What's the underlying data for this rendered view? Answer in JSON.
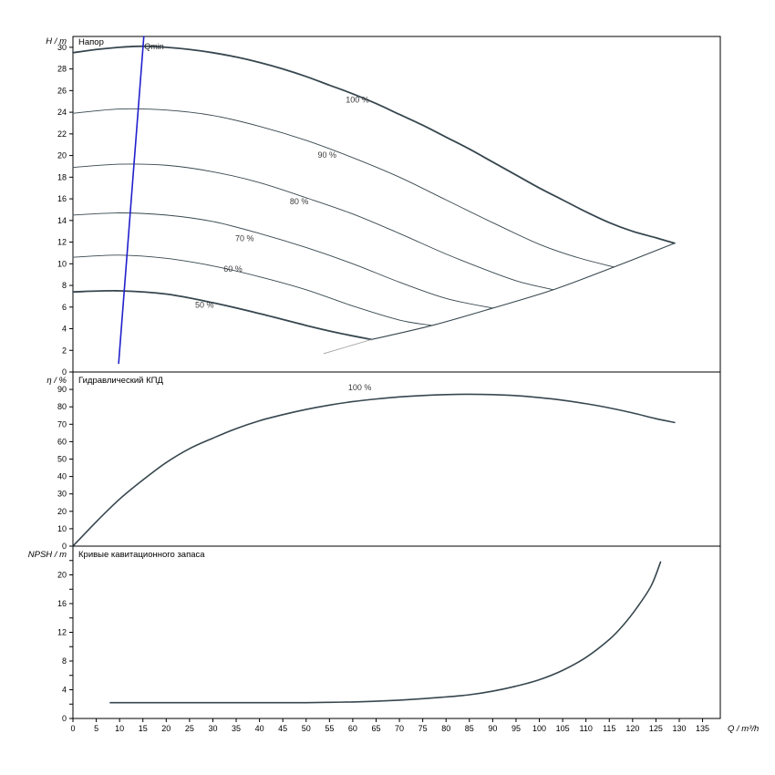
{
  "page": {
    "background": "#ffffff"
  },
  "style": {
    "curve_color": "#37474f",
    "qmin_color": "#2020cc",
    "limit_color": "#9e9e9e",
    "label_color": "#3a3a3a",
    "frame_color": "#000000"
  },
  "axis": {
    "x": {
      "label": "Q / m³/h",
      "min": 0,
      "scale_max": 138.8,
      "tick_step": 5,
      "tick_max": 135
    }
  },
  "chart_data": [
    {
      "type": "line",
      "title": "Напор",
      "ylabel": "H / m",
      "ylim": [
        0,
        31
      ],
      "yticks": {
        "step": 2,
        "max": 30,
        "label_every": 2
      },
      "series": [
        {
          "name": "curve-100pct",
          "width": 1.8,
          "x": [
            0,
            5,
            10,
            15,
            20,
            25,
            30,
            35,
            40,
            45,
            50,
            55,
            60,
            65,
            70,
            75,
            80,
            85,
            90,
            95,
            100,
            105,
            110,
            115,
            120,
            125,
            129
          ],
          "y": [
            29.5,
            29.8,
            30.0,
            30.1,
            30.0,
            29.8,
            29.5,
            29.1,
            28.6,
            28.0,
            27.3,
            26.5,
            25.7,
            24.8,
            23.8,
            22.8,
            21.7,
            20.6,
            19.4,
            18.2,
            17.0,
            15.9,
            14.8,
            13.8,
            13.0,
            12.4,
            11.9
          ]
        },
        {
          "name": "curve-90pct",
          "width": 0.9,
          "x": [
            0,
            10,
            20,
            30,
            40,
            50,
            60,
            70,
            80,
            90,
            100,
            108,
            116
          ],
          "y": [
            23.9,
            24.3,
            24.2,
            23.7,
            22.7,
            21.4,
            19.8,
            18.0,
            15.9,
            13.8,
            11.8,
            10.6,
            9.7
          ]
        },
        {
          "name": "curve-80pct",
          "width": 0.9,
          "x": [
            0,
            10,
            20,
            30,
            40,
            50,
            60,
            70,
            80,
            90,
            96,
            103
          ],
          "y": [
            18.9,
            19.2,
            19.1,
            18.5,
            17.5,
            16.1,
            14.6,
            12.8,
            10.9,
            9.2,
            8.3,
            7.6
          ]
        },
        {
          "name": "curve-70pct",
          "width": 0.9,
          "x": [
            0,
            10,
            20,
            30,
            40,
            50,
            60,
            70,
            80,
            90
          ],
          "y": [
            14.5,
            14.7,
            14.5,
            13.9,
            12.8,
            11.5,
            10.0,
            8.3,
            6.8,
            5.9
          ]
        },
        {
          "name": "curve-60pct",
          "width": 0.9,
          "x": [
            0,
            10,
            20,
            30,
            40,
            50,
            60,
            70,
            77
          ],
          "y": [
            10.6,
            10.8,
            10.5,
            9.8,
            8.8,
            7.6,
            6.1,
            4.8,
            4.3
          ]
        },
        {
          "name": "curve-50pct",
          "width": 1.8,
          "x": [
            0,
            10,
            20,
            30,
            40,
            50,
            57,
            64
          ],
          "y": [
            7.4,
            7.5,
            7.2,
            6.4,
            5.4,
            4.3,
            3.6,
            3.0
          ]
        },
        {
          "name": "max-flow-boundary",
          "width": 1.1,
          "x": [
            64,
            77,
            90,
            103,
            116,
            129
          ],
          "y": [
            3.0,
            4.3,
            5.9,
            7.6,
            9.7,
            11.9
          ]
        },
        {
          "name": "min-limit-gray-line",
          "width": 0.8,
          "color": "#9e9e9e",
          "x": [
            53.8,
            64
          ],
          "y": [
            1.7,
            3.0
          ]
        },
        {
          "name": "qmin-line",
          "width": 1.6,
          "color": "#2020cc",
          "x": [
            9.8,
            15.2
          ],
          "y": [
            0.8,
            31
          ]
        }
      ],
      "labels": [
        {
          "text": "100 %",
          "q": 61,
          "v": 24.9
        },
        {
          "text": "90 %",
          "q": 54.5,
          "v": 19.8
        },
        {
          "text": "80 %",
          "q": 48.5,
          "v": 15.5
        },
        {
          "text": "70 %",
          "q": 36.8,
          "v": 12.1
        },
        {
          "text": "60 %",
          "q": 34.3,
          "v": 9.25
        },
        {
          "text": "50 %",
          "q": 28.2,
          "v": 5.95
        },
        {
          "text": "Qmin",
          "q": 15.3,
          "v": 29.8,
          "anchor": "start",
          "color": "#222222"
        }
      ]
    },
    {
      "type": "line",
      "title": "Гидравлический КПД",
      "ylabel": "η / %",
      "ylim": [
        0,
        100
      ],
      "yticks": {
        "step": 10,
        "max": 90,
        "label_every": 10
      },
      "series": [
        {
          "name": "efficiency-curve-100pct",
          "width": 1.6,
          "x": [
            0,
            5,
            10,
            15,
            20,
            25,
            30,
            35,
            40,
            45,
            50,
            55,
            60,
            65,
            70,
            75,
            80,
            85,
            90,
            95,
            100,
            105,
            110,
            115,
            120,
            125,
            129
          ],
          "y": [
            0,
            14,
            27,
            38,
            48,
            56,
            62,
            67.5,
            72,
            75.5,
            78.5,
            81,
            83,
            84.5,
            85.7,
            86.5,
            87,
            87.2,
            87,
            86.4,
            85.3,
            83.8,
            81.8,
            79.4,
            76.5,
            73.2,
            71
          ]
        }
      ],
      "labels": [
        {
          "text": "100 %",
          "q": 61.5,
          "v": 89.5
        }
      ]
    },
    {
      "type": "line",
      "title": "Кривые кавитационного запаса",
      "ylabel": "NPSH / m",
      "ylim": [
        0,
        24
      ],
      "yticks": {
        "step": 2,
        "max": 22,
        "label_every": 4
      },
      "series": [
        {
          "name": "npsh-curve",
          "width": 1.6,
          "x": [
            8,
            15,
            20,
            25,
            30,
            35,
            40,
            45,
            50,
            55,
            60,
            65,
            70,
            75,
            80,
            85,
            90,
            95,
            100,
            105,
            110,
            115,
            118,
            121,
            124,
            126
          ],
          "y": [
            2.2,
            2.2,
            2.2,
            2.2,
            2.2,
            2.2,
            2.2,
            2.2,
            2.2,
            2.25,
            2.3,
            2.4,
            2.55,
            2.75,
            3.0,
            3.3,
            3.8,
            4.5,
            5.4,
            6.7,
            8.5,
            11.0,
            13.0,
            15.5,
            18.5,
            21.8
          ]
        }
      ],
      "labels": []
    }
  ]
}
